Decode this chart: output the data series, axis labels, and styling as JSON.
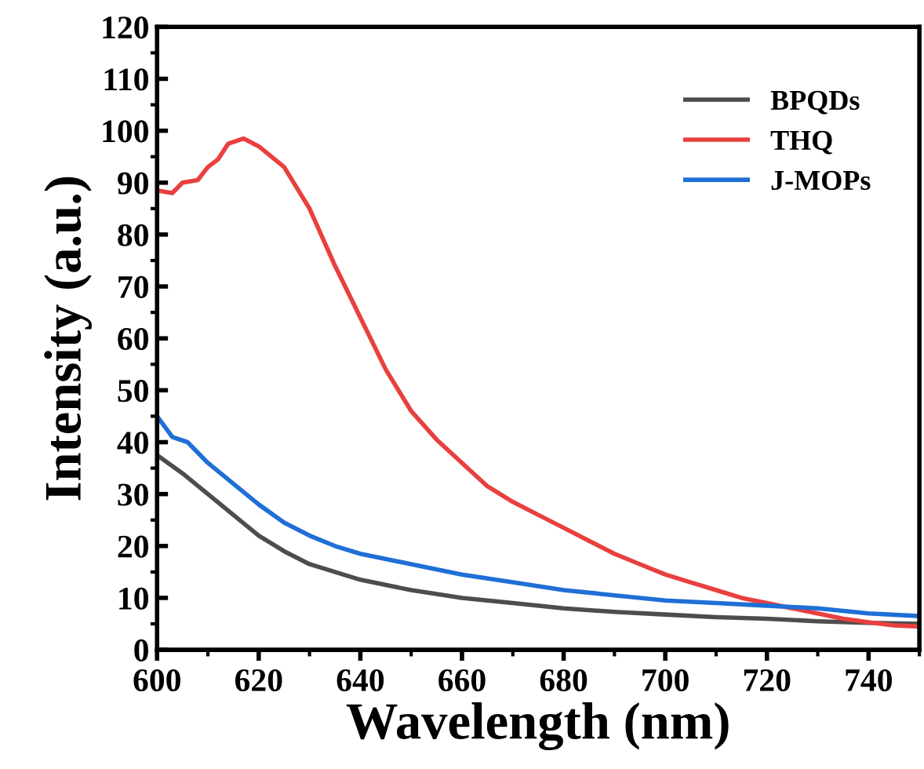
{
  "chart_data": {
    "type": "line",
    "xlabel": "Wavelength (nm)",
    "ylabel": "Intensity (a.u.)",
    "xlim": [
      600,
      750
    ],
    "xticks": [
      600,
      620,
      640,
      660,
      680,
      700,
      720,
      740
    ],
    "ylim": [
      0,
      120
    ],
    "yticks": [
      0,
      10,
      20,
      30,
      40,
      50,
      60,
      70,
      80,
      90,
      100,
      110,
      120
    ],
    "grid": false,
    "legend": "top right",
    "marker": "none",
    "line_style": "solid",
    "series": [
      {
        "name": "BPQDs",
        "color": "#4d4d4d",
        "x": [
          600,
          605,
          610,
          615,
          620,
          625,
          630,
          635,
          640,
          650,
          660,
          670,
          680,
          690,
          700,
          710,
          720,
          730,
          740,
          750
        ],
        "values": [
          37.5,
          34,
          30,
          26,
          22,
          19,
          16.5,
          15,
          13.5,
          11.5,
          10,
          9,
          8,
          7.3,
          6.8,
          6.3,
          6,
          5.5,
          5.2,
          5
        ]
      },
      {
        "name": "THQ",
        "color": "#e8403f",
        "x": [
          600,
          603,
          605,
          608,
          610,
          612,
          614,
          617,
          620,
          625,
          630,
          635,
          640,
          645,
          650,
          655,
          660,
          665,
          670,
          675,
          680,
          685,
          690,
          695,
          700,
          705,
          710,
          715,
          720,
          725,
          730,
          735,
          740,
          745,
          750
        ],
        "values": [
          88.5,
          88,
          90,
          90.5,
          93,
          94.5,
          97.5,
          98.5,
          97,
          93,
          85,
          74,
          64,
          54,
          46,
          40.5,
          36,
          31.5,
          28.5,
          26,
          23.5,
          21,
          18.5,
          16.5,
          14.5,
          13,
          11.5,
          10,
          9,
          8,
          7,
          6,
          5.3,
          4.7,
          4.5
        ]
      },
      {
        "name": "J-MOPs",
        "color": "#1f6fd6",
        "x": [
          600,
          603,
          606,
          610,
          615,
          620,
          625,
          630,
          635,
          640,
          650,
          660,
          670,
          680,
          690,
          700,
          710,
          720,
          730,
          740,
          750
        ],
        "values": [
          45,
          41,
          40,
          36,
          32,
          28,
          24.5,
          22,
          20,
          18.5,
          16.5,
          14.5,
          13,
          11.5,
          10.5,
          9.5,
          9,
          8.5,
          8,
          7,
          6.5
        ]
      }
    ]
  }
}
